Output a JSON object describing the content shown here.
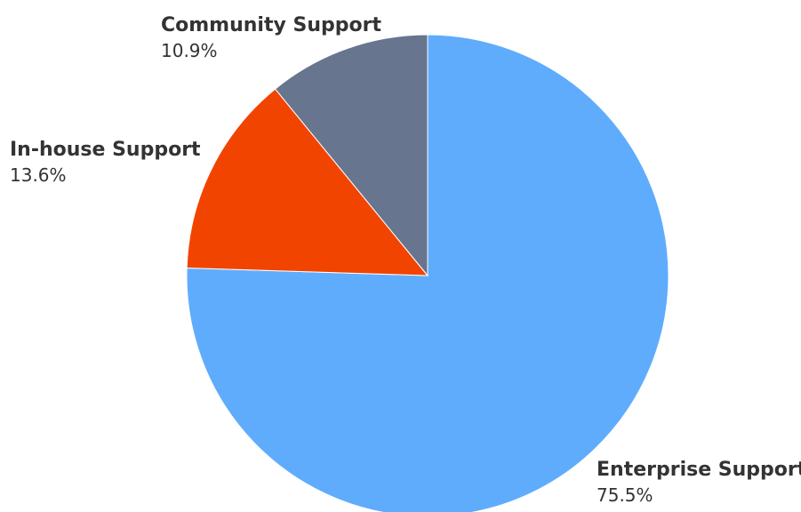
{
  "chart_data": {
    "type": "pie",
    "title": "",
    "slices": [
      {
        "name": "Enterprise Support",
        "value": 75.5,
        "label": "75.5%",
        "color": "#60acfc"
      },
      {
        "name": "In-house Support",
        "value": 13.6,
        "label": "13.6%",
        "color": "#f24401"
      },
      {
        "name": "Community Support",
        "value": 10.9,
        "label": "10.9%",
        "color": "#67758f"
      }
    ],
    "start": "12 o'clock",
    "direction": "clockwise"
  }
}
